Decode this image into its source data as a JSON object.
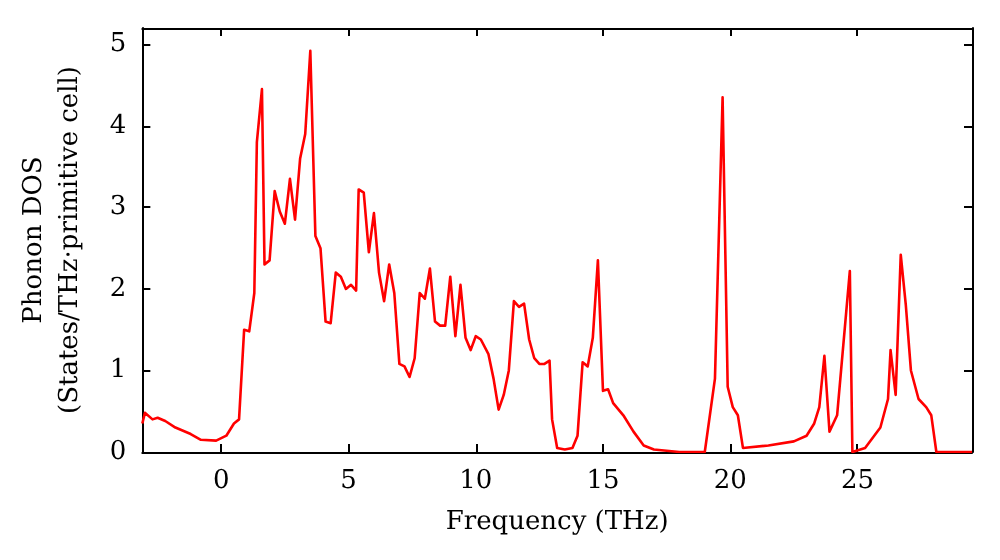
{
  "chart_data": {
    "type": "line",
    "xlabel": "Frequency (THz)",
    "ylabel": "Phonon DOS\n(States/THz·primitive cell)",
    "x": [
      -3.1,
      -3.0,
      -2.7,
      -2.5,
      -2.2,
      -1.8,
      -1.2,
      -0.8,
      -0.2,
      0.2,
      0.5,
      0.7,
      0.9,
      1.1,
      1.3,
      1.4,
      1.6,
      1.7,
      1.9,
      2.1,
      2.3,
      2.5,
      2.7,
      2.9,
      3.1,
      3.3,
      3.5,
      3.7,
      3.9,
      4.1,
      4.3,
      4.5,
      4.7,
      4.9,
      5.1,
      5.3,
      5.4,
      5.6,
      5.8,
      6.0,
      6.2,
      6.4,
      6.6,
      6.8,
      7.0,
      7.2,
      7.4,
      7.6,
      7.8,
      8.0,
      8.2,
      8.4,
      8.6,
      8.8,
      9.0,
      9.2,
      9.4,
      9.6,
      9.8,
      10.0,
      10.2,
      10.5,
      10.7,
      10.9,
      11.1,
      11.3,
      11.5,
      11.7,
      11.9,
      12.1,
      12.3,
      12.5,
      12.7,
      12.9,
      13.0,
      13.2,
      13.5,
      13.8,
      14.0,
      14.2,
      14.4,
      14.6,
      14.8,
      15.0,
      15.2,
      15.4,
      15.8,
      16.2,
      16.6,
      17.0,
      18.0,
      19.0,
      19.4,
      19.7,
      19.9,
      20.1,
      20.3,
      20.5,
      21.5,
      22.5,
      23.0,
      23.3,
      23.5,
      23.7,
      23.9,
      24.2,
      24.7,
      24.8,
      25.3,
      25.9,
      26.2,
      26.3,
      26.5,
      26.7,
      26.9,
      27.1,
      27.4,
      27.7,
      27.9,
      28.1,
      29.5
    ],
    "series": [
      {
        "color": "#ff0000",
        "values": [
          0.35,
          0.48,
          0.4,
          0.42,
          0.38,
          0.3,
          0.22,
          0.15,
          0.14,
          0.2,
          0.35,
          0.4,
          1.5,
          1.48,
          1.95,
          3.8,
          4.45,
          2.3,
          2.35,
          3.2,
          2.95,
          2.8,
          3.35,
          2.85,
          3.6,
          3.9,
          4.92,
          2.65,
          2.5,
          1.6,
          1.58,
          2.2,
          2.15,
          2.0,
          2.05,
          1.98,
          3.22,
          3.18,
          2.45,
          2.93,
          2.2,
          1.85,
          2.3,
          1.95,
          1.08,
          1.05,
          0.92,
          1.15,
          1.95,
          1.88,
          2.25,
          1.6,
          1.55,
          1.55,
          2.15,
          1.42,
          2.05,
          1.4,
          1.25,
          1.42,
          1.38,
          1.2,
          0.9,
          0.52,
          0.7,
          1.0,
          1.85,
          1.78,
          1.82,
          1.38,
          1.15,
          1.08,
          1.08,
          1.12,
          0.4,
          0.05,
          0.03,
          0.05,
          0.2,
          1.1,
          1.05,
          1.4,
          2.35,
          0.75,
          0.77,
          0.6,
          0.45,
          0.25,
          0.08,
          0.03,
          0,
          0,
          0.9,
          4.35,
          0.8,
          0.55,
          0.45,
          0.05,
          0.08,
          0.13,
          0.2,
          0.35,
          0.55,
          1.18,
          0.25,
          0.45,
          2.22,
          0,
          0.05,
          0.3,
          0.65,
          1.25,
          0.7,
          2.42,
          1.8,
          1.0,
          0.65,
          0.55,
          0.45,
          0,
          0
        ]
      }
    ],
    "xlim": [
      -3.1,
      29.5
    ],
    "xticks": [
      0,
      5,
      10,
      15,
      20,
      25
    ],
    "ylim": [
      0,
      5.2
    ],
    "yticks": [
      0,
      1,
      2,
      3,
      4,
      5
    ],
    "grid": false,
    "marker": "none",
    "line_style": "solid"
  }
}
